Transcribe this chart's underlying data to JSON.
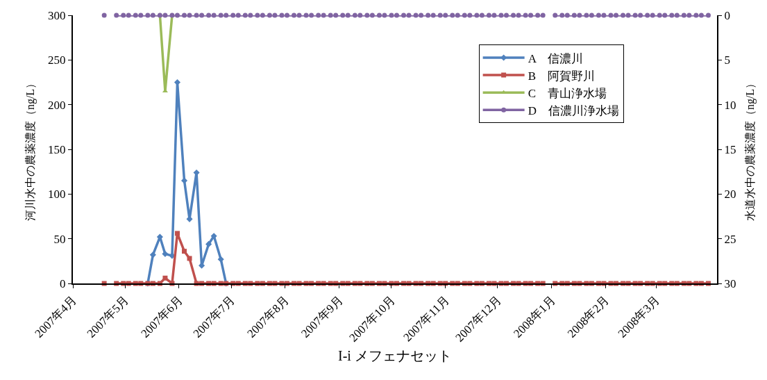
{
  "chart_data": {
    "type": "line",
    "xlabel": "I-i メフェナセット",
    "ylabel": "河川水中の農薬濃度（ng/L）",
    "y2label": "水道水中の農薬濃度（ng/L）",
    "x": [
      "2007-04-19",
      "2007-04-23",
      "2007-04-26",
      "2007-04-30",
      "2007-05-03",
      "2007-05-07",
      "2007-05-10",
      "2007-05-14",
      "2007-05-17",
      "2007-05-21",
      "2007-05-24",
      "2007-05-28",
      "2007-05-31",
      "2007-06-04",
      "2007-06-07",
      "2007-06-11",
      "2007-06-14",
      "2007-06-18",
      "2007-06-21",
      "2007-06-25",
      "2007-06-28",
      "2007-07-02",
      "2007-07-05",
      "2007-07-09",
      "2007-07-12",
      "2007-07-16",
      "2007-07-19",
      "2007-07-23",
      "2007-07-26",
      "2007-07-30",
      "2007-08-02",
      "2007-08-06",
      "2007-08-09",
      "2007-08-13",
      "2007-08-16",
      "2007-08-20",
      "2007-08-23",
      "2007-08-27",
      "2007-08-30",
      "2007-09-03",
      "2007-09-06",
      "2007-09-10",
      "2007-09-13",
      "2007-09-17",
      "2007-09-20",
      "2007-09-24",
      "2007-09-27",
      "2007-10-01",
      "2007-10-04",
      "2007-10-08",
      "2007-10-11",
      "2007-10-15",
      "2007-10-18",
      "2007-10-22",
      "2007-10-25",
      "2007-10-29",
      "2007-11-01",
      "2007-11-05",
      "2007-11-08",
      "2007-11-12",
      "2007-11-15",
      "2007-11-19",
      "2007-11-22",
      "2007-11-26",
      "2007-11-29",
      "2007-12-03",
      "2007-12-06",
      "2007-12-10",
      "2007-12-13",
      "2007-12-17",
      "2007-12-20",
      "2007-12-24",
      "2007-12-27",
      "2007-12-31",
      "2008-01-03",
      "2008-01-07",
      "2008-01-10",
      "2008-01-14",
      "2008-01-17",
      "2008-01-21",
      "2008-01-24",
      "2008-01-28",
      "2008-01-31",
      "2008-02-04",
      "2008-02-07",
      "2008-02-11",
      "2008-02-14",
      "2008-02-18",
      "2008-02-21",
      "2008-02-25",
      "2008-02-28",
      "2008-03-03",
      "2008-03-06",
      "2008-03-10",
      "2008-03-13",
      "2008-03-17",
      "2008-03-20",
      "2008-03-24",
      "2008-03-27",
      "2008-03-31"
    ],
    "series": [
      {
        "name": "A　信濃川",
        "color": "#4f81bd",
        "marker": "diamond",
        "values": [
          null,
          null,
          null,
          null,
          null,
          null,
          null,
          0,
          32,
          52,
          33,
          31,
          225,
          115,
          72,
          124,
          20,
          44,
          53,
          27,
          0,
          null,
          null,
          null,
          null,
          null,
          null,
          null,
          null,
          null,
          null,
          null,
          null,
          null,
          null,
          null,
          null,
          null,
          null,
          null,
          null,
          null,
          null,
          null,
          null,
          null,
          null,
          null,
          null,
          null,
          null,
          null,
          null,
          null,
          null,
          null,
          null,
          null,
          null,
          null,
          null,
          null,
          null,
          null,
          null,
          null,
          null,
          null,
          null,
          null,
          null,
          null,
          null,
          null,
          null,
          null,
          null,
          null,
          null,
          null,
          null,
          null,
          null,
          null,
          null,
          null,
          null,
          null,
          null,
          null,
          null,
          null,
          null,
          null,
          null,
          null,
          null,
          null,
          null,
          null
        ]
      },
      {
        "name": "B　阿賀野川",
        "color": "#c0504d",
        "marker": "square",
        "values": [
          0,
          null,
          0,
          0,
          0,
          0,
          0,
          0,
          0,
          0,
          6,
          0,
          56,
          36,
          28,
          0,
          0,
          0,
          0,
          0,
          0,
          0,
          0,
          0,
          0,
          0,
          0,
          0,
          0,
          0,
          0,
          0,
          0,
          0,
          0,
          0,
          0,
          0,
          0,
          0,
          0,
          0,
          0,
          0,
          0,
          0,
          0,
          0,
          0,
          0,
          0,
          0,
          0,
          0,
          0,
          0,
          0,
          0,
          0,
          0,
          0,
          0,
          0,
          0,
          0,
          0,
          0,
          0,
          0,
          0,
          0,
          0,
          0,
          null,
          0,
          0,
          0,
          0,
          0,
          0,
          0,
          0,
          0,
          0,
          0,
          0,
          0,
          0,
          0,
          0,
          0,
          0,
          0,
          0,
          0,
          0,
          0,
          0,
          0,
          0
        ]
      },
      {
        "name": "C　青山浄水場",
        "color": "#9bbb59",
        "marker": "triangle",
        "axis": "y2",
        "values": [
          null,
          null,
          null,
          null,
          null,
          null,
          null,
          null,
          null,
          0,
          8.5,
          0,
          null,
          null,
          null,
          null,
          null,
          null,
          null,
          null,
          null,
          null,
          null,
          null,
          null,
          null,
          null,
          null,
          null,
          null,
          null,
          null,
          null,
          null,
          null,
          null,
          null,
          null,
          null,
          null,
          null,
          null,
          null,
          null,
          null,
          null,
          null,
          null,
          null,
          null,
          null,
          null,
          null,
          null,
          null,
          null,
          null,
          null,
          null,
          null,
          null,
          null,
          null,
          null,
          null,
          null,
          null,
          null,
          null,
          null,
          null,
          null,
          null,
          null,
          null,
          null,
          null,
          null,
          null,
          null,
          null,
          null,
          null,
          null,
          null,
          null,
          null,
          null,
          null,
          null,
          null,
          null,
          null,
          null,
          null,
          null,
          null,
          null,
          null,
          null
        ]
      },
      {
        "name": "D　信濃川浄水場",
        "color": "#8064a2",
        "marker": "circle",
        "axis": "y2",
        "values": [
          0,
          null,
          0,
          0,
          0,
          0,
          0,
          0,
          0,
          0,
          0,
          0,
          0,
          0,
          0,
          0,
          0,
          0,
          0,
          0,
          0,
          0,
          0,
          0,
          0,
          0,
          0,
          0,
          0,
          0,
          0,
          0,
          0,
          0,
          0,
          0,
          0,
          0,
          0,
          0,
          0,
          0,
          0,
          0,
          0,
          0,
          0,
          0,
          0,
          0,
          0,
          0,
          0,
          0,
          0,
          0,
          0,
          0,
          0,
          0,
          0,
          0,
          0,
          0,
          0,
          0,
          0,
          0,
          0,
          0,
          0,
          0,
          0,
          null,
          0,
          0,
          0,
          0,
          0,
          0,
          0,
          0,
          0,
          0,
          0,
          0,
          0,
          0,
          0,
          0,
          0,
          0,
          0,
          0,
          0,
          0,
          0,
          0,
          0,
          0
        ]
      }
    ],
    "xlim": [
      "2007-04-01",
      "2008-04-05"
    ],
    "xticks": [
      {
        "value": "2007-04-01",
        "label": "2007年4月"
      },
      {
        "value": "2007-05-01",
        "label": "2007年5月"
      },
      {
        "value": "2007-06-01",
        "label": "2007年6月"
      },
      {
        "value": "2007-07-01",
        "label": "2007年7月"
      },
      {
        "value": "2007-08-01",
        "label": "2007年8月"
      },
      {
        "value": "2007-09-01",
        "label": "2007年9月"
      },
      {
        "value": "2007-10-01",
        "label": "2007年10月"
      },
      {
        "value": "2007-11-01",
        "label": "2007年11月"
      },
      {
        "value": "2007-12-01",
        "label": "2007年12月"
      },
      {
        "value": "2008-01-01",
        "label": "2008年1月"
      },
      {
        "value": "2008-02-01",
        "label": "2008年2月"
      },
      {
        "value": "2008-03-01",
        "label": "2008年3月"
      }
    ],
    "ylim": [
      0,
      300
    ],
    "yticks": [
      0,
      50,
      100,
      150,
      200,
      250,
      300
    ],
    "y2lim": [
      30,
      0
    ],
    "y2ticks": [
      0,
      5,
      10,
      15,
      20,
      25,
      30
    ],
    "legend": "top right",
    "line_style": "solid"
  }
}
